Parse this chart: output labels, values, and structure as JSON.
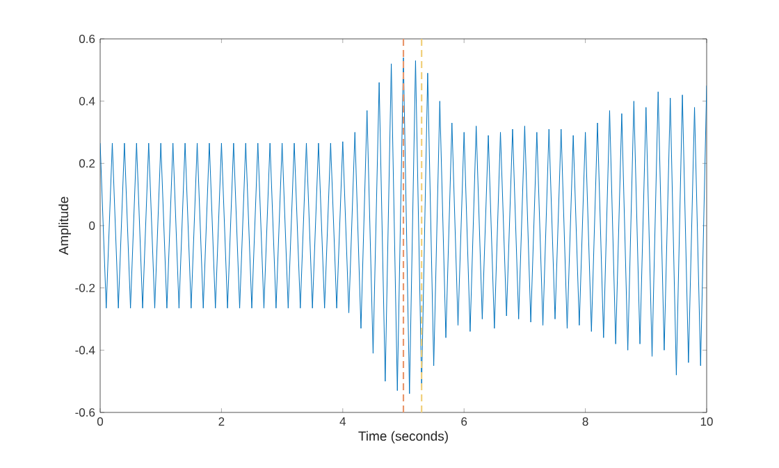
{
  "chart_data": {
    "type": "line",
    "xlabel": "Time (seconds)",
    "ylabel": "Amplitude",
    "xlim": [
      0,
      10
    ],
    "ylim": [
      -0.6,
      0.6
    ],
    "xticks": [
      0,
      2,
      4,
      6,
      8,
      10
    ],
    "yticks": [
      -0.6,
      -0.4,
      -0.2,
      0,
      0.2,
      0.4,
      0.6
    ],
    "grid": false,
    "marker": "none",
    "line_style": "solid",
    "series": [
      {
        "color": "#0072bd",
        "x": [
          0,
          0.1,
          0.2,
          0.3,
          0.4,
          0.5,
          0.6,
          0.7,
          0.8,
          0.9,
          1,
          1.1,
          1.2,
          1.3,
          1.4,
          1.5,
          1.6,
          1.7,
          1.8,
          1.9,
          2,
          2.1,
          2.2,
          2.3,
          2.4,
          2.5,
          2.6,
          2.7,
          2.8,
          2.9,
          3,
          3.1,
          3.2,
          3.3,
          3.4,
          3.5,
          3.6,
          3.7,
          3.8,
          3.9,
          4,
          4.1,
          4.2,
          4.3,
          4.4,
          4.5,
          4.6,
          4.7,
          4.8,
          4.9,
          5,
          5.1,
          5.2,
          5.3,
          5.4,
          5.5,
          5.6,
          5.7,
          5.8,
          5.9,
          6,
          6.1,
          6.2,
          6.3,
          6.4,
          6.5,
          6.6,
          6.7,
          6.8,
          6.9,
          7,
          7.1,
          7.2,
          7.3,
          7.4,
          7.5,
          7.6,
          7.7,
          7.8,
          7.9,
          8,
          8.1,
          8.2,
          8.3,
          8.4,
          8.5,
          8.6,
          8.7,
          8.8,
          8.9,
          9,
          9.1,
          9.2,
          9.3,
          9.4,
          9.5,
          9.6,
          9.7,
          9.8,
          9.9,
          10
        ],
        "values": [
          0.265,
          -0.265,
          0.265,
          -0.265,
          0.265,
          -0.265,
          0.265,
          -0.265,
          0.265,
          -0.265,
          0.265,
          -0.265,
          0.265,
          -0.265,
          0.265,
          -0.265,
          0.265,
          -0.265,
          0.265,
          -0.265,
          0.265,
          -0.265,
          0.265,
          -0.265,
          0.265,
          -0.265,
          0.265,
          -0.265,
          0.265,
          -0.265,
          0.265,
          -0.265,
          0.265,
          -0.265,
          0.265,
          -0.265,
          0.265,
          -0.265,
          0.265,
          -0.265,
          0.27,
          -0.28,
          0.3,
          -0.33,
          0.37,
          -0.41,
          0.46,
          -0.5,
          0.52,
          -0.53,
          0.54,
          -0.54,
          0.53,
          -0.52,
          0.49,
          -0.45,
          0.4,
          -0.36,
          0.33,
          -0.32,
          0.3,
          -0.34,
          0.32,
          -0.3,
          0.29,
          -0.33,
          0.3,
          -0.29,
          0.31,
          -0.3,
          0.32,
          -0.31,
          0.3,
          -0.32,
          0.31,
          -0.3,
          0.31,
          -0.33,
          0.29,
          -0.32,
          0.3,
          -0.34,
          0.33,
          -0.36,
          0.37,
          -0.38,
          0.36,
          -0.4,
          0.4,
          -0.38,
          0.38,
          -0.42,
          0.43,
          -0.4,
          0.41,
          -0.48,
          0.42,
          -0.44,
          0.38,
          -0.45,
          0.45
        ]
      }
    ],
    "ref_lines": [
      {
        "axis": "x",
        "value": 5,
        "color": "#e8956a",
        "line_style": "dashed"
      },
      {
        "axis": "x",
        "value": 5.3,
        "color": "#f0cf7a",
        "line_style": "dashed"
      }
    ]
  }
}
